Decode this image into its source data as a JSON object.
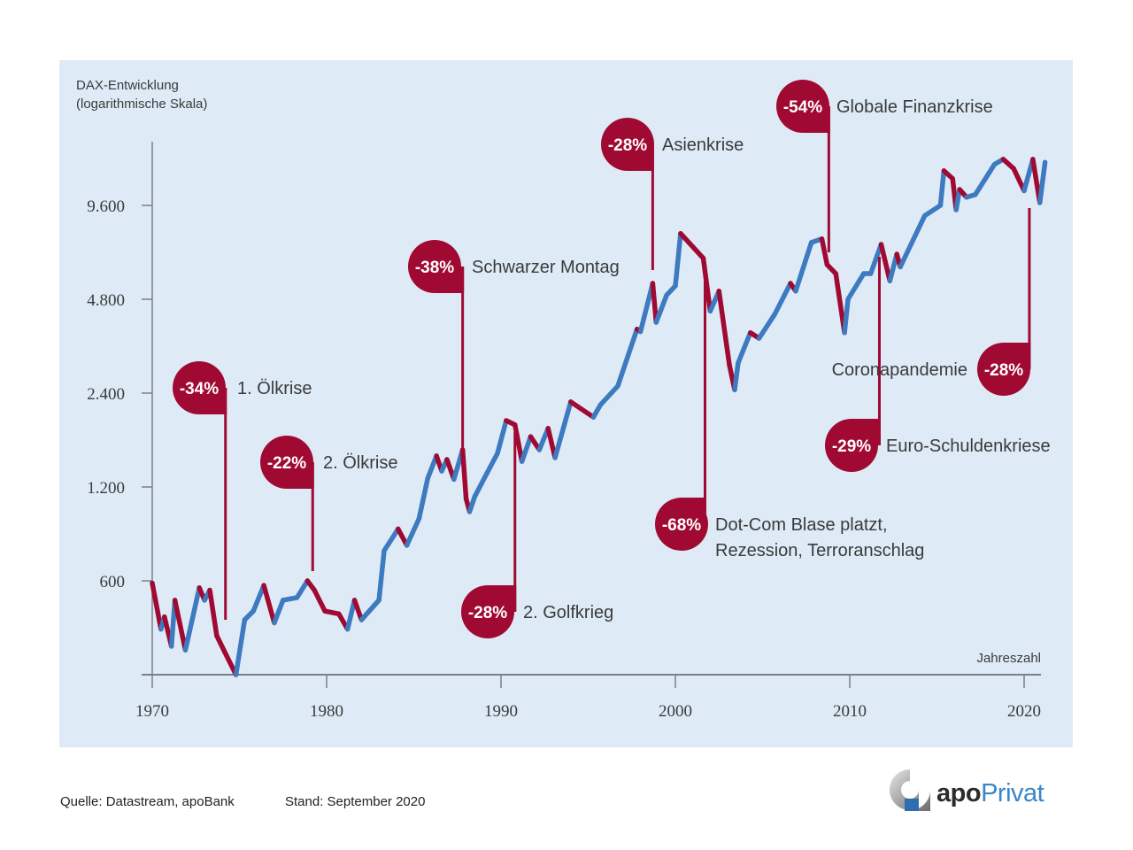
{
  "header": {
    "title_line1": "DAX-Entwicklung",
    "title_line2": "(logarithmische Skala)"
  },
  "footer": {
    "source": "Quelle: Datastream, apoBank",
    "date": "Stand: September 2020"
  },
  "logo": {
    "apo": "apo",
    "privat": "Privat"
  },
  "colors": {
    "background_panel": "#deebf7",
    "rise": "#3d7abf",
    "decline": "#a00a32",
    "axis": "#7a7f87",
    "text": "#3a3a3a"
  },
  "chart_data": {
    "type": "line",
    "title": "DAX-Entwicklung (logarithmische Skala)",
    "xlabel": "Jahreszahl",
    "ylabel": "DAX-Entwicklung (logarithmische Skala)",
    "yscale": "log2",
    "xlim": [
      1970,
      2021
    ],
    "ylim": [
      300,
      16000
    ],
    "x_ticks": [
      1970,
      1980,
      1990,
      2000,
      2010,
      2020
    ],
    "x_tick_labels": [
      "1970",
      "1980",
      "1990",
      "2000",
      "2010",
      "2020"
    ],
    "y_ticks": [
      600,
      1200,
      2400,
      4800,
      9600
    ],
    "y_tick_labels": [
      "600",
      "1.200",
      "2.400",
      "4.800",
      "9.600"
    ],
    "grid": false,
    "legend": "none",
    "series": [
      {
        "name": "DAX",
        "points": [
          [
            1970.0,
            590,
            "d"
          ],
          [
            1970.5,
            420,
            "d"
          ],
          [
            1970.7,
            460,
            "u"
          ],
          [
            1971.1,
            370,
            "u"
          ],
          [
            1971.3,
            520,
            "d"
          ],
          [
            1971.9,
            360,
            "d"
          ],
          [
            1972.7,
            570,
            "u"
          ],
          [
            1973.0,
            520,
            "u"
          ],
          [
            1973.3,
            560,
            "d"
          ],
          [
            1973.7,
            400,
            "d"
          ],
          [
            1974.1,
            360,
            "d"
          ],
          [
            1974.8,
            300,
            "d"
          ],
          [
            1975.3,
            450,
            "u"
          ],
          [
            1975.8,
            480,
            "u"
          ],
          [
            1976.4,
            580,
            "u"
          ],
          [
            1977.0,
            440,
            "d"
          ],
          [
            1977.5,
            520,
            "u"
          ],
          [
            1978.3,
            530,
            "u"
          ],
          [
            1978.9,
            600,
            "u"
          ],
          [
            1979.3,
            560,
            "d"
          ],
          [
            1979.9,
            480,
            "d"
          ],
          [
            1980.7,
            470,
            "d"
          ],
          [
            1981.2,
            420,
            "d"
          ],
          [
            1981.6,
            520,
            "u"
          ],
          [
            1982.0,
            450,
            "u"
          ],
          [
            1983.0,
            520,
            "u"
          ],
          [
            1983.3,
            750,
            "u"
          ],
          [
            1984.1,
            880,
            "u"
          ],
          [
            1984.6,
            780,
            "d"
          ],
          [
            1985.3,
            950,
            "u"
          ],
          [
            1985.8,
            1280,
            "u"
          ],
          [
            1986.3,
            1510,
            "u"
          ],
          [
            1986.6,
            1350,
            "u"
          ],
          [
            1986.9,
            1470,
            "u"
          ],
          [
            1987.3,
            1270,
            "u"
          ],
          [
            1987.8,
            1580,
            "u"
          ],
          [
            1988.0,
            1100,
            "d"
          ],
          [
            1988.2,
            1000,
            "d"
          ],
          [
            1988.5,
            1120,
            "u"
          ],
          [
            1989.2,
            1330,
            "u"
          ],
          [
            1989.8,
            1540,
            "u"
          ],
          [
            1990.3,
            1960,
            "u"
          ],
          [
            1990.8,
            1900,
            "d"
          ],
          [
            1991.2,
            1450,
            "d"
          ],
          [
            1991.7,
            1740,
            "u"
          ],
          [
            1992.2,
            1580,
            "u"
          ],
          [
            1992.7,
            1850,
            "u"
          ],
          [
            1993.1,
            1490,
            "d"
          ],
          [
            1994.0,
            2250,
            "u"
          ],
          [
            1995.3,
            2010,
            "d"
          ],
          [
            1995.7,
            2200,
            "u"
          ],
          [
            1996.7,
            2530,
            "u"
          ],
          [
            1997.8,
            3850,
            "u"
          ],
          [
            1998.0,
            3780,
            "u"
          ],
          [
            1998.7,
            5400,
            "u"
          ],
          [
            1998.9,
            4050,
            "d"
          ],
          [
            1999.5,
            4950,
            "u"
          ],
          [
            2000.0,
            5300,
            "u"
          ],
          [
            2000.3,
            7800,
            "u"
          ],
          [
            2001.6,
            6500,
            "d"
          ],
          [
            2002.0,
            4400,
            "d"
          ],
          [
            2002.5,
            5100,
            "d"
          ],
          [
            2003.1,
            2950,
            "d"
          ],
          [
            2003.4,
            2460,
            "d"
          ],
          [
            2003.6,
            3000,
            "u"
          ],
          [
            2004.3,
            3750,
            "u"
          ],
          [
            2004.8,
            3600,
            "u"
          ],
          [
            2005.7,
            4300,
            "u"
          ],
          [
            2006.6,
            5400,
            "u"
          ],
          [
            2006.9,
            5100,
            "u"
          ],
          [
            2007.8,
            7300,
            "u"
          ],
          [
            2008.4,
            7500,
            "u"
          ],
          [
            2008.7,
            6200,
            "d"
          ],
          [
            2009.2,
            5800,
            "d"
          ],
          [
            2009.7,
            3750,
            "d"
          ],
          [
            2009.9,
            4800,
            "u"
          ],
          [
            2010.8,
            5800,
            "u"
          ],
          [
            2011.2,
            5800,
            "u"
          ],
          [
            2011.8,
            7200,
            "u"
          ],
          [
            2012.3,
            5500,
            "d"
          ],
          [
            2012.7,
            6700,
            "u"
          ],
          [
            2012.9,
            6100,
            "u"
          ],
          [
            2014.3,
            8900,
            "u"
          ],
          [
            2015.2,
            9600,
            "u"
          ],
          [
            2015.4,
            12400,
            "u"
          ],
          [
            2015.9,
            11700,
            "d"
          ],
          [
            2016.1,
            9300,
            "d"
          ],
          [
            2016.3,
            10800,
            "u"
          ],
          [
            2016.7,
            10200,
            "u"
          ],
          [
            2017.2,
            10400,
            "u"
          ],
          [
            2018.3,
            13000,
            "u"
          ],
          [
            2018.8,
            13500,
            "u"
          ],
          [
            2019.4,
            12600,
            "d"
          ],
          [
            2020.0,
            10700,
            "d"
          ],
          [
            2020.5,
            13500,
            "u"
          ],
          [
            2020.9,
            9800,
            "d"
          ],
          [
            2021.2,
            13200,
            "u"
          ]
        ]
      }
    ],
    "annotations": [
      {
        "pct": "-34%",
        "label": "1. Ölkrise",
        "year": 1974.2,
        "side": "up"
      },
      {
        "pct": "-22%",
        "label": "2. Ölkrise",
        "year": 1979.2,
        "side": "up"
      },
      {
        "pct": "-38%",
        "label": "Schwarzer Montag",
        "year": 1987.8,
        "side": "up"
      },
      {
        "pct": "-28%",
        "label": "2. Golfkrieg",
        "year": 1990.8,
        "side": "down"
      },
      {
        "pct": "-28%",
        "label": "Asienkrise",
        "year": 1998.7,
        "side": "up"
      },
      {
        "pct": "-68%",
        "label": "Dot-Com Blase platzt,",
        "label2": "Rezession, Terroranschlag",
        "year": 2001.7,
        "side": "down"
      },
      {
        "pct": "-54%",
        "label": "Globale Finanzkrise",
        "year": 2008.8,
        "side": "up"
      },
      {
        "pct": "-29%",
        "label": "Euro-Schuldenkriese",
        "year": 2011.7,
        "side": "down"
      },
      {
        "pct": "-28%",
        "label": "Coronapandemie",
        "year": 2020.3,
        "side": "down-left"
      }
    ]
  }
}
